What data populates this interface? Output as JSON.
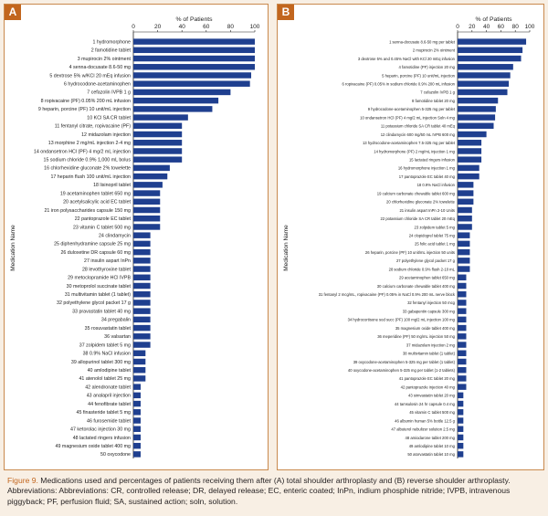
{
  "figure": {
    "caption_label": "Figure 9.",
    "caption_text": " Medications used and percentages of patients receiving them after (A) total shoulder arthroplasty and (B) reverse shoulder arthroplasty. Abbreviations: Abbreviations: CR, controlled release; DR, delayed release; EC, enteric coated; InPn, indium phosphide nitride; IVPB, intravenous piggyback; PF, perfusion fluid; SA, sustained action; soln, solution."
  },
  "colors": {
    "bar": "#1f3f8f",
    "accent": "#c2661e",
    "border": "#c98a4e",
    "page_bg": "#f8efe4"
  },
  "chart_data": [
    {
      "panel": "A",
      "type": "bar",
      "orientation": "horizontal",
      "title": "% of Patients",
      "xlabel": "% of Patients",
      "ylabel": "Medication Name",
      "xlim": [
        0,
        100
      ],
      "xticks": [
        0,
        20,
        40,
        60,
        80,
        100
      ],
      "categories": [
        "1 hydromorphone",
        "2 famotidine tablet",
        "3 mupirocin 2% ointment",
        "4 senna-docusate 8.6-50 mg",
        "5 dextrose 5% w/KCl 20 mEq infusion",
        "6 hydrocodone-acetaminophen",
        "7 cefazolin IVPB 1 g",
        "8 ropivacaine (PF) 0.05% 200 mL infusion",
        "9 heparin, porcine (PF) 10 unit/mL injection",
        "10 KCl SA CR tablet",
        "11 fentanyl citrate, ropivacaine (PF)",
        "12 midazolam injection",
        "13 morphine 2 mg/mL injection 2-4 mg",
        "14 ondansetron HCl (PF) 4 mg/2 mL injection",
        "15 sodium chloride 0.9% 1,000 mL bolus",
        "16 chlorhexidine gluconate 2% towelette",
        "17 heparin flush 100 unit/mL injection",
        "18 lisinopril tablet",
        "19 acetaminophen tablet 650 mg",
        "20 acetylsalicylic acid EC tablet",
        "21 iron polysaccharides capsule 150 mg",
        "22 pantoprazole EC tablet",
        "23 vitamin C tablet 500 mg",
        "24 clindamycin",
        "25 diphenhydramine capsule 25 mg",
        "26 duloxetine DR capsule 60 mg",
        "27 insulin aspart InPn",
        "28 levothyroxine tablet",
        "29 metoclopramide HCl IVPB",
        "30 metoprolol succinate tablet",
        "31 multivitamin tablet (1 tablet)",
        "32 polyethylene glycol packet 17 g",
        "33 pravastatin tablet 40 mg",
        "34 pregabalin",
        "35 rosuvastatin tablet",
        "36 valsartan",
        "37 zolpidem tablet 5 mg",
        "38 0.9% NaCl infusion",
        "39 allopurinol tablet 300 mg",
        "40 amlodipine tablet",
        "41 atenolol tablet 25 mg",
        "42 alendronate tablet",
        "43 analapril injection",
        "44 fenofibrate tablet",
        "45 finasteride tablet 5 mg",
        "46 furosemide tablet",
        "47 ketorolac injection 30 mg",
        "48 lactated ringers infusion",
        "49 magnesium oxide tablet 400 mg",
        "50 oxycodone"
      ],
      "values": [
        100,
        100,
        100,
        100,
        97,
        96,
        80,
        70,
        65,
        45,
        40,
        40,
        40,
        40,
        40,
        30,
        28,
        24,
        22,
        22,
        22,
        22,
        22,
        14,
        14,
        14,
        14,
        14,
        14,
        14,
        14,
        14,
        14,
        14,
        14,
        14,
        14,
        10,
        10,
        10,
        10,
        6,
        6,
        6,
        6,
        6,
        6,
        6,
        6,
        6
      ]
    },
    {
      "panel": "B",
      "type": "bar",
      "orientation": "horizontal",
      "title": "% of Patients",
      "xlabel": "% of Patients",
      "ylabel": "Medication Name",
      "xlim": [
        0,
        100
      ],
      "xticks": [
        0,
        20,
        40,
        60,
        80,
        100
      ],
      "categories": [
        "1 senna-docusate 8.6-50 mg per tablet",
        "2 mupirocin 2% ointment",
        "3 dextrose 5% and 0.45% NaCl with KCl 20 mEq infusion",
        "4 famotidine (PF) injection 20 mg",
        "5 heparin, porcine (PF) 10 unit/mL injection",
        "6 ropivacaine (PF) 0.05% in sodium chloride 0.9% 200 mL infusion",
        "7 cefazolin IVPB 1 g",
        "8 famotidine tablet 20 mg",
        "9 hydrocodone-acetaminophen 5-325 mg per tablet",
        "10 ondansetron HCl (PF) 4 mg/2 mL injection Soln 4 mg",
        "11 potassium chloride SA CR tablet 40 mEq",
        "12 clindamycin 600 mg/50 mL IVPB 600 mg",
        "13 hydrocodone-acetaminophen 7.5-325 mg per tablet",
        "14 hydromorphone (PF) 2 mg/mL injection 1 mg",
        "15 lactated ringers infusion",
        "16 hydromorphone injection 1 mg",
        "17 pantoprazole EC tablet 40 mg",
        "18 0.9% NaCl infusion",
        "19 calcium carbonate chewable tablet 600 mg",
        "20 chlorhexidine gluconate 2% towelette",
        "21 insulin aspart InPn 2-10 Units",
        "22 potassium chloride SA CR tablet 20 mEq",
        "23 zolpidem tablet 5 mg",
        "24 clopidogrel tablet 75 mg",
        "25 folic acid tablet 1 mg",
        "26 heparin, porcine (PF) 10 unit/mL injection 50 units",
        "27 polyethylene glycol packet 17 g",
        "28 sodium chloride 0.9% flush 2-10 mL",
        "29 acetaminophen tablet 650 mg",
        "30 calcium carbonate chewable tablet 400 mg",
        "31 fentanyl 2 mcg/mL, ropivacaine (PF) 0.05% in NaCl 0.9% 200 mL nerve block",
        "32 fentanyl injection 50 mcg",
        "33 gabapentin capsule 300 mg",
        "34 hydrocortisone sod succ (PF) 100 mg/2 mL injection 100 mg",
        "35 magnesium oxide tablet 400 mg",
        "36 meperidine (PF) 50 mg/mL injection 50 mg",
        "37 midazolam injection 2 mg",
        "38 multivitamin tablet (1 tablet)",
        "39 oxycodone-acetaminophen 5-325 mg per tablet (1 tablet)",
        "40 oxycodone-acetaminophen 5-325 mg per tablet (1-2 tablets)",
        "41 pantoprazole EC tablet 20 mg",
        "42 pantoprazole injection 40 mg",
        "43 simvastatin tablet 20 mg",
        "44 tamsulosin 24 hr capsule 0.4 mg",
        "45 vitamin C tablet 500 mg",
        "46 albumin human 5% bottle 12.5 g",
        "47 albuterol nebulizer solution 2.5 mg",
        "48 amiodarone tablet 200 mg",
        "49 amlodipine tablet 10 mg",
        "50 atorvastatin tablet 10 mg"
      ],
      "values": [
        95,
        90,
        88,
        77,
        73,
        71,
        69,
        56,
        53,
        52,
        50,
        40,
        33,
        33,
        33,
        30,
        30,
        22,
        22,
        22,
        20,
        20,
        20,
        17,
        17,
        17,
        17,
        17,
        12,
        12,
        12,
        12,
        12,
        12,
        12,
        12,
        12,
        12,
        12,
        12,
        12,
        12,
        8,
        8,
        8,
        8,
        8,
        8,
        8,
        8
      ]
    }
  ]
}
